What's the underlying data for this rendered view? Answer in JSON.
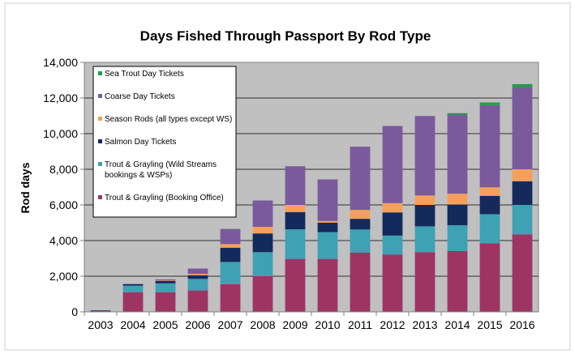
{
  "chart_data": {
    "type": "bar",
    "stacked": true,
    "title": "Days Fished Through Passport By Rod Type",
    "xlabel": "",
    "ylabel": "Rod days",
    "ylim": [
      0,
      14000
    ],
    "yticks": [
      "0",
      "2,000",
      "4,000",
      "6,000",
      "8,000",
      "10,000",
      "12,000",
      "14,000"
    ],
    "grid": true,
    "legend_position": "top-left inside",
    "categories": [
      "2003",
      "2004",
      "2005",
      "2006",
      "2007",
      "2008",
      "2009",
      "2010",
      "2011",
      "2012",
      "2013",
      "2014",
      "2015",
      "2016"
    ],
    "series": [
      {
        "name": "Trout & Grayling (Booking Office)",
        "color": "#9e3464",
        "values": [
          60,
          1100,
          1100,
          1200,
          1550,
          2000,
          2970,
          2970,
          3320,
          3220,
          3350,
          3420,
          3850,
          4350
        ]
      },
      {
        "name": "Trout & Grayling (Wild Streams bookings & WSPs)",
        "color": "#3ea1b4",
        "values": [
          20,
          370,
          500,
          650,
          1250,
          1350,
          1660,
          1500,
          1300,
          1060,
          1450,
          1440,
          1630,
          1650
        ]
      },
      {
        "name": "Salmon Day Tickets",
        "color": "#142a5c",
        "values": [
          10,
          80,
          140,
          200,
          800,
          1050,
          970,
          530,
          600,
          1300,
          1200,
          1160,
          1030,
          1330
        ]
      },
      {
        "name": "Season Rods (all types except WS)",
        "color": "#f5a05a",
        "values": [
          0,
          0,
          30,
          80,
          200,
          370,
          400,
          100,
          500,
          520,
          530,
          610,
          480,
          670
        ]
      },
      {
        "name": "Coarse Day Tickets",
        "color": "#7a5a9c",
        "values": [
          0,
          20,
          50,
          300,
          850,
          1480,
          2170,
          2330,
          3550,
          4330,
          4460,
          4440,
          4610,
          4630
        ]
      },
      {
        "name": "Sea Trout Day Tickets",
        "color": "#1aa048",
        "values": [
          0,
          0,
          0,
          0,
          0,
          0,
          0,
          0,
          0,
          0,
          0,
          80,
          150,
          150
        ]
      }
    ]
  }
}
